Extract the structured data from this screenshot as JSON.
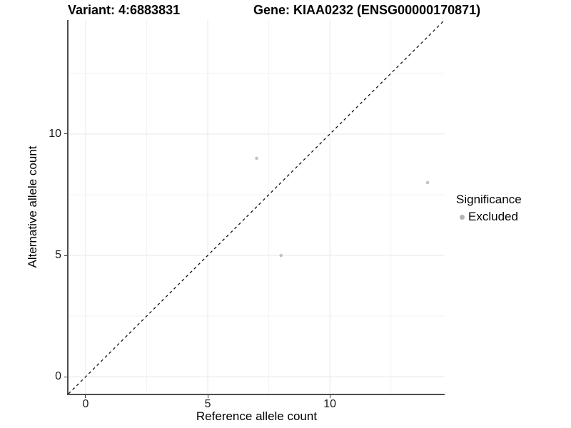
{
  "titles": {
    "variant": "Variant: 4:6883831",
    "gene": "Gene: KIAA0232 (ENSG00000170871)"
  },
  "axes": {
    "x": {
      "label": "Reference allele count",
      "ticks": [
        "0",
        "5",
        "10"
      ],
      "tick_values": [
        0,
        5,
        10
      ]
    },
    "y": {
      "label": "Alternative allele count",
      "ticks": [
        "0",
        "5",
        "10"
      ],
      "tick_values": [
        0,
        5,
        10
      ]
    }
  },
  "legend": {
    "title": "Significance",
    "items": [
      {
        "label": "Excluded",
        "color": "#b4b4b4"
      }
    ]
  },
  "chart_data": {
    "type": "scatter",
    "title": "Variant: 4:6883831 | Gene: KIAA0232 (ENSG00000170871)",
    "xlabel": "Reference allele count",
    "ylabel": "Alternative allele count",
    "xlim": [
      -0.7,
      14.7
    ],
    "ylim": [
      -0.7,
      14.7
    ],
    "grid": {
      "major": [
        0,
        5,
        10
      ],
      "minor": [
        2.5,
        7.5,
        12.5
      ]
    },
    "series": [
      {
        "name": "Excluded",
        "color": "#c3c3c3",
        "points": [
          {
            "x": 7,
            "y": 9
          },
          {
            "x": 8,
            "y": 5
          },
          {
            "x": 14,
            "y": 8
          }
        ]
      }
    ],
    "reference_line": {
      "type": "identity y=x",
      "style": "dashed",
      "color": "#000000"
    }
  },
  "style_colors": {
    "axis_line": "#4d4d4d",
    "grid_major": "#e7e7e7",
    "grid_minor": "#f3f3f3",
    "tick_mark": "#333333"
  }
}
